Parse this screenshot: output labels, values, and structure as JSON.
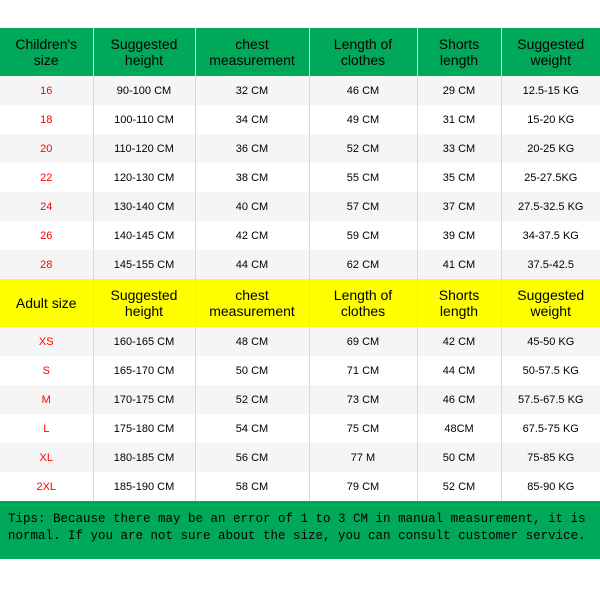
{
  "colors": {
    "header_green": "#00a859",
    "header_yellow": "#ffff00",
    "row_even": "#f5f5f5",
    "row_odd": "#ffffff",
    "border": "#d9d9d9",
    "size_text": "#ff0000",
    "body_text": "#000000"
  },
  "typography": {
    "header_fontsize": 14,
    "cell_fontsize": 11,
    "tips_fontsize": 12.5,
    "tips_font": "Courier New, monospace"
  },
  "columns_width_pct": [
    15.5,
    17,
    19,
    18,
    14,
    16.5
  ],
  "children": {
    "headers": [
      "Children's size",
      "Suggested height",
      "chest measurement",
      "Length of clothes",
      "Shorts length",
      "Suggested weight"
    ],
    "rows": [
      {
        "size": "16",
        "h": "90-100 CM",
        "chest": "32 CM",
        "len": "46 CM",
        "shorts": "29 CM",
        "w": "12.5-15 KG"
      },
      {
        "size": "18",
        "h": "100-110 CM",
        "chest": "34 CM",
        "len": "49 CM",
        "shorts": "31 CM",
        "w": "15-20 KG"
      },
      {
        "size": "20",
        "h": "110-120 CM",
        "chest": "36 CM",
        "len": "52 CM",
        "shorts": "33 CM",
        "w": "20-25 KG"
      },
      {
        "size": "22",
        "h": "120-130 CM",
        "chest": "38 CM",
        "len": "55 CM",
        "shorts": "35 CM",
        "w": "25-27.5KG"
      },
      {
        "size": "24",
        "h": "130-140 CM",
        "chest": "40 CM",
        "len": "57 CM",
        "shorts": "37 CM",
        "w": "27.5-32.5 KG"
      },
      {
        "size": "26",
        "h": "140-145 CM",
        "chest": "42 CM",
        "len": "59 CM",
        "shorts": "39 CM",
        "w": "34-37.5 KG"
      },
      {
        "size": "28",
        "h": "145-155 CM",
        "chest": "44 CM",
        "len": "62 CM",
        "shorts": "41 CM",
        "w": "37.5-42.5"
      }
    ]
  },
  "adult": {
    "headers": [
      "Adult size",
      "Suggested height",
      "chest measurement",
      "Length of clothes",
      "Shorts length",
      "Suggested weight"
    ],
    "rows": [
      {
        "size": "XS",
        "h": "160-165 CM",
        "chest": "48 CM",
        "len": "69 CM",
        "shorts": "42 CM",
        "w": "45-50 KG"
      },
      {
        "size": "S",
        "h": "165-170 CM",
        "chest": "50 CM",
        "len": "71 CM",
        "shorts": "44 CM",
        "w": "50-57.5 KG"
      },
      {
        "size": "M",
        "h": "170-175 CM",
        "chest": "52 CM",
        "len": "73 CM",
        "shorts": "46 CM",
        "w": "57.5-67.5 KG"
      },
      {
        "size": "L",
        "h": "175-180 CM",
        "chest": "54 CM",
        "len": "75 CM",
        "shorts": "48CM",
        "w": "67.5-75 KG"
      },
      {
        "size": "XL",
        "h": "180-185 CM",
        "chest": "56 CM",
        "len": "77 M",
        "shorts": "50 CM",
        "w": "75-85 KG"
      },
      {
        "size": "2XL",
        "h": "185-190 CM",
        "chest": "58 CM",
        "len": "79 CM",
        "shorts": "52 CM",
        "w": "85-90 KG"
      }
    ]
  },
  "tips": "Tips: Because there may be an error of 1 to 3 CM in manual measurement, it is normal. If you are not sure about the size, you can consult customer service."
}
